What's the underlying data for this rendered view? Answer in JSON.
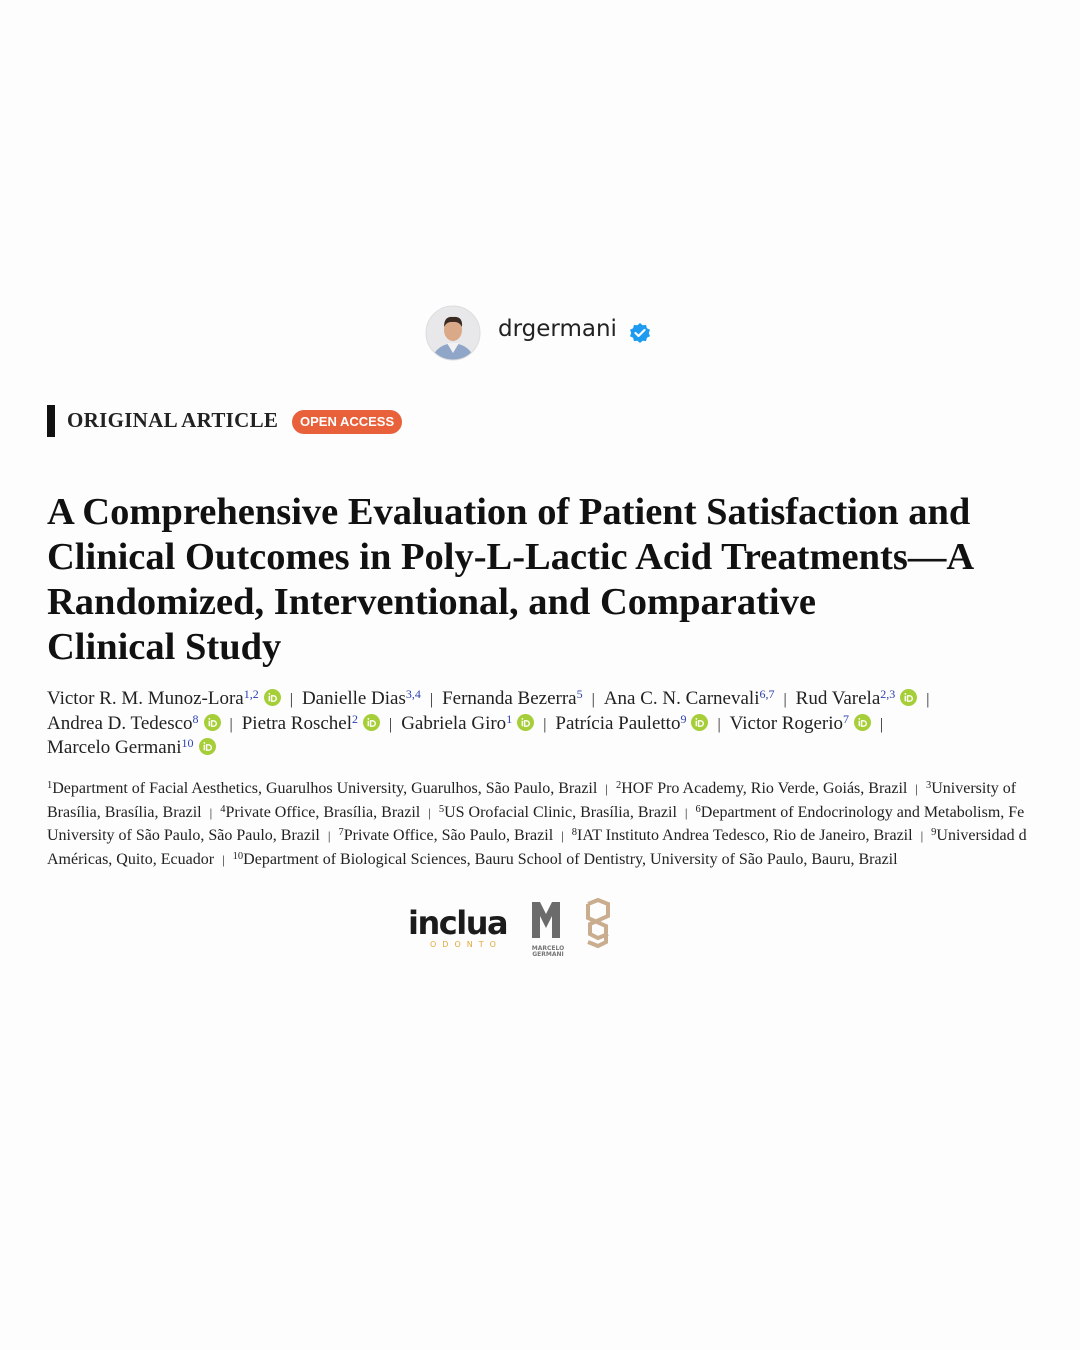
{
  "profile": {
    "username": "drgermani"
  },
  "article": {
    "label": "ORIGINAL ARTICLE",
    "badge": "OPEN ACCESS",
    "title_lines": [
      "A Comprehensive Evaluation of Patient Satisfaction and",
      "Clinical Outcomes in Poly-L-Lactic Acid Treatments—A",
      "Randomized, Interventional, and Comparative",
      "Clinical Study"
    ],
    "separator": "|",
    "author_lines": [
      [
        {
          "name": "Victor R. M. Munoz-Lora",
          "sup": "1,2",
          "orcid": true
        },
        {
          "name": "Danielle Dias",
          "sup": "3,4",
          "orcid": false
        },
        {
          "name": "Fernanda Bezerra",
          "sup": "5",
          "orcid": false
        },
        {
          "name": "Ana C. N. Carnevali",
          "sup": "6,7",
          "orcid": false
        },
        {
          "name": "Rud Varela",
          "sup": "2,3",
          "orcid": true
        }
      ],
      [
        {
          "name": "Andrea D. Tedesco",
          "sup": "8",
          "orcid": true
        },
        {
          "name": "Pietra Roschel",
          "sup": "2",
          "orcid": true
        },
        {
          "name": "Gabriela Giro",
          "sup": "1",
          "orcid": true
        },
        {
          "name": "Patrícia Pauletto",
          "sup": "9",
          "orcid": true
        },
        {
          "name": "Victor Rogerio",
          "sup": "7",
          "orcid": true
        }
      ],
      [
        {
          "name": "Marcelo Germani",
          "sup": "10",
          "orcid": true
        }
      ]
    ],
    "affiliation_lines": [
      [
        {
          "sup": "1",
          "text": "Department of Facial Aesthetics, Guarulhos University, Guarulhos, São Paulo, Brazil"
        },
        {
          "sup": "2",
          "text": "HOF Pro Academy, Rio Verde, Goiás, Brazil"
        },
        {
          "sup": "3",
          "text": "University of"
        }
      ],
      [
        {
          "text": "Brasília, Brasília, Brazil"
        },
        {
          "sup": "4",
          "text": "Private Office, Brasília, Brazil"
        },
        {
          "sup": "5",
          "text": "US Orofacial Clinic, Brasília, Brazil"
        },
        {
          "sup": "6",
          "text": "Department of Endocrinology and Metabolism, Fe"
        }
      ],
      [
        {
          "text": "University of São Paulo, São Paulo, Brazil"
        },
        {
          "sup": "7",
          "text": "Private Office, São Paulo, Brazil"
        },
        {
          "sup": "8",
          "text": "IAT Instituto Andrea Tedesco, Rio de Janeiro, Brazil"
        },
        {
          "sup": "9",
          "text": "Universidad d"
        }
      ],
      [
        {
          "text": "Américas, Quito, Ecuador"
        },
        {
          "sup": "10",
          "text": "Department of Biological Sciences, Bauru School of Dentistry, University of São Paulo, Bauru, Brazil"
        }
      ]
    ]
  },
  "logos": {
    "inclua": "inclua",
    "inclua_sub": "ODONTO",
    "mg_line1": "MARCELO",
    "mg_line2": "GERMANI"
  }
}
